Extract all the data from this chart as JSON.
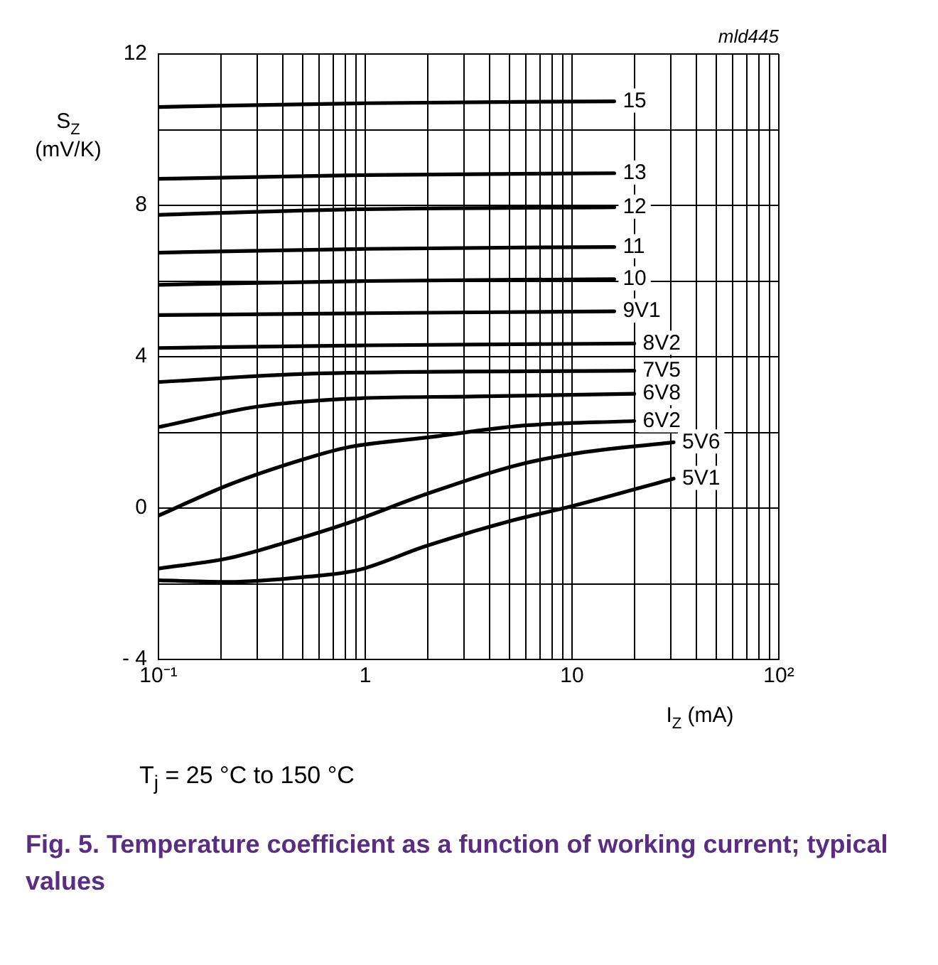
{
  "chart_data": {
    "type": "line",
    "title": "Fig. 5. Temperature coefficient as a function of working current; typical values",
    "xlabel": "I$_{Z}$ (mA)",
    "ylabel": "S$_{Z}$ (mV/K)",
    "annotations": [
      "mld445",
      "T$_{j}$ = 25 °C to 150 °C"
    ],
    "log": "x",
    "grid": true,
    "legend": false,
    "marker": "none",
    "line_style": "solid",
    "xlim": [
      0.1,
      100
    ],
    "ylim": [
      -4,
      12
    ],
    "xticks": [
      {
        "value": 0.1,
        "label": "10⁻¹"
      },
      {
        "value": 0.2,
        "label": null
      },
      {
        "value": 0.3,
        "label": null
      },
      {
        "value": 0.4,
        "label": null
      },
      {
        "value": 0.5,
        "label": null
      },
      {
        "value": 0.6,
        "label": null
      },
      {
        "value": 0.7,
        "label": null
      },
      {
        "value": 0.8,
        "label": null
      },
      {
        "value": 0.9,
        "label": null
      },
      1,
      {
        "value": 2,
        "label": null
      },
      {
        "value": 3,
        "label": null
      },
      {
        "value": 4,
        "label": null
      },
      {
        "value": 5,
        "label": null
      },
      {
        "value": 6,
        "label": null
      },
      {
        "value": 7,
        "label": null
      },
      {
        "value": 8,
        "label": null
      },
      {
        "value": 9,
        "label": null
      },
      10,
      {
        "value": 20,
        "label": null
      },
      {
        "value": 30,
        "label": null
      },
      {
        "value": 40,
        "label": null
      },
      {
        "value": 50,
        "label": null
      },
      {
        "value": 60,
        "label": null
      },
      {
        "value": 70,
        "label": null
      },
      {
        "value": 80,
        "label": null
      },
      {
        "value": 90,
        "label": null
      },
      {
        "value": 100,
        "label": "10²"
      }
    ],
    "yticks": [
      {
        "value": -4,
        "label": "- 4"
      },
      {
        "value": -2,
        "label": null
      },
      0,
      {
        "value": 2,
        "label": null
      },
      4,
      {
        "value": 6,
        "label": null
      },
      8,
      {
        "value": 10,
        "label": null
      },
      12
    ],
    "series": [
      {
        "name": "15",
        "color": "#000000",
        "x": [
          0.1,
          1,
          16
        ],
        "values": [
          10.6,
          10.7,
          10.75
        ]
      },
      {
        "name": "13",
        "color": "#000000",
        "x": [
          0.1,
          1,
          16
        ],
        "values": [
          8.7,
          8.8,
          8.85
        ]
      },
      {
        "name": "12",
        "color": "#000000",
        "x": [
          0.1,
          1,
          16
        ],
        "values": [
          7.75,
          7.9,
          7.95
        ]
      },
      {
        "name": "11",
        "color": "#000000",
        "x": [
          0.1,
          1,
          16
        ],
        "values": [
          6.75,
          6.85,
          6.9
        ]
      },
      {
        "name": "10",
        "color": "#000000",
        "x": [
          0.1,
          1,
          16
        ],
        "values": [
          5.9,
          6.0,
          6.05
        ]
      },
      {
        "name": "9V1",
        "color": "#000000",
        "x": [
          0.1,
          1,
          16
        ],
        "values": [
          5.1,
          5.15,
          5.2
        ]
      },
      {
        "name": "8V2",
        "color": "#000000",
        "x": [
          0.1,
          1,
          20
        ],
        "values": [
          4.23,
          4.3,
          4.35
        ]
      },
      {
        "name": "7V5",
        "color": "#000000",
        "x": [
          0.1,
          0.54,
          20
        ],
        "values": [
          3.33,
          3.55,
          3.63
        ]
      },
      {
        "name": "6V8",
        "color": "#000000",
        "x": [
          0.1,
          0.3,
          0.83,
          3.4,
          20
        ],
        "values": [
          2.14,
          2.68,
          2.89,
          2.95,
          3.02
        ]
      },
      {
        "name": "6V2",
        "color": "#000000",
        "x": [
          0.1,
          0.22,
          0.51,
          0.83,
          1.95,
          5.8,
          20
        ],
        "values": [
          -0.2,
          0.62,
          1.3,
          1.61,
          1.86,
          2.18,
          2.3
        ]
      },
      {
        "name": "5V6",
        "color": "#000000",
        "x": [
          0.1,
          0.22,
          0.39,
          0.83,
          1.95,
          5.2,
          10,
          31
        ],
        "values": [
          -1.6,
          -1.32,
          -0.95,
          -0.39,
          0.36,
          1.11,
          1.43,
          1.74
        ]
      },
      {
        "name": "5V1",
        "color": "#000000",
        "x": [
          0.1,
          0.22,
          0.51,
          0.92,
          1.95,
          5.2,
          10,
          31
        ],
        "values": [
          -1.91,
          -1.95,
          -1.82,
          -1.64,
          -1.01,
          -0.32,
          0.05,
          0.78
        ]
      }
    ]
  }
}
